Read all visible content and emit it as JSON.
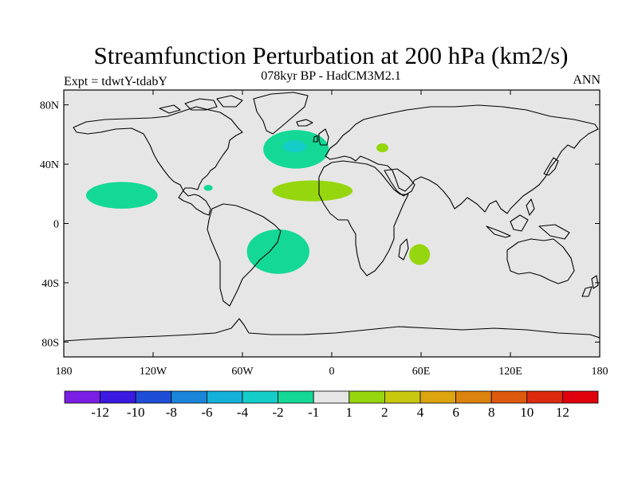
{
  "header": {
    "title": "Streamfunction Perturbation at 200 hPa (km2/s)",
    "subtitle": "078kyr BP - HadCM3M2.1",
    "experiment": "Expt = tdwtY-tdabY",
    "season": "ANN"
  },
  "chart_data": {
    "type": "heatmap",
    "projection": "equirectangular",
    "lon_range": [
      -180,
      180
    ],
    "lat_range": [
      -90,
      90
    ],
    "x_ticks": [
      {
        "lon": -180,
        "label": "180"
      },
      {
        "lon": -120,
        "label": "120W"
      },
      {
        "lon": -60,
        "label": "60W"
      },
      {
        "lon": 0,
        "label": "0"
      },
      {
        "lon": 60,
        "label": "60E"
      },
      {
        "lon": 120,
        "label": "120E"
      },
      {
        "lon": 180,
        "label": "180"
      }
    ],
    "y_ticks": [
      {
        "lat": 80,
        "label": "80N"
      },
      {
        "lat": 40,
        "label": "40N"
      },
      {
        "lat": 0,
        "label": "0"
      },
      {
        "lat": -40,
        "label": "40S"
      },
      {
        "lat": -80,
        "label": "80S"
      }
    ],
    "background_color": "#e6e6e6",
    "colorbar": {
      "colors": [
        "#7a1ee6",
        "#3a19e0",
        "#1f4ed6",
        "#1a86d9",
        "#14b0d8",
        "#14cdc8",
        "#14d896",
        "#e6e6e6",
        "#96d60e",
        "#c8c80e",
        "#dca40e",
        "#dc820e",
        "#dc5a0e",
        "#dc2a0e",
        "#e0000e"
      ],
      "labels": [
        "-12",
        "-10",
        "-8",
        "-6",
        "-4",
        "-2",
        "-1",
        "1",
        "2",
        "4",
        "6",
        "8",
        "10",
        "12"
      ]
    },
    "anomalies": [
      {
        "name": "north-atlantic-negative",
        "lon": -24,
        "lat": 50,
        "rlon": 22,
        "rlat": 13,
        "level": -1,
        "color": "#14d896"
      },
      {
        "name": "north-atlantic-core",
        "lon": -25,
        "lat": 52,
        "rlon": 8,
        "rlat": 4,
        "level": -2,
        "color": "#14cdc8"
      },
      {
        "name": "north-pacific-negative",
        "lon": -141,
        "lat": 19,
        "rlon": 24,
        "rlat": 9,
        "level": -1,
        "color": "#14d896"
      },
      {
        "name": "south-atlantic-negative",
        "lon": -36,
        "lat": -19,
        "rlon": 21,
        "rlat": 15,
        "level": -1,
        "color": "#14d896"
      },
      {
        "name": "caribbean-negative",
        "lon": -83,
        "lat": 24,
        "rlon": 3,
        "rlat": 2,
        "level": -1,
        "color": "#14d896"
      },
      {
        "name": "subtropical-atlantic-positive",
        "lon": -13,
        "lat": 22,
        "rlon": 27,
        "rlat": 7,
        "level": 1,
        "color": "#96d60e"
      },
      {
        "name": "caspian-positive",
        "lon": 34,
        "lat": 51,
        "rlon": 4,
        "rlat": 3,
        "level": 1,
        "color": "#96d60e"
      },
      {
        "name": "indian-ocean-positive",
        "lon": 59,
        "lat": -21,
        "rlon": 7,
        "rlat": 7,
        "level": 1,
        "color": "#96d60e"
      }
    ]
  }
}
